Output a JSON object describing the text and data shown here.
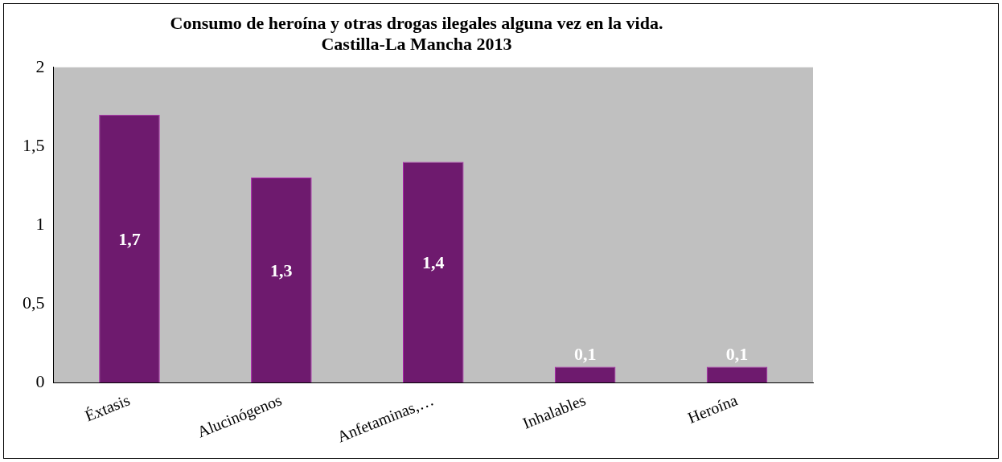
{
  "chart_data": {
    "type": "bar",
    "title": "Consumo de heroína y otras drogas ilegales alguna vez en la vida.\nCastilla-La Mancha 2013",
    "categories": [
      "Éxtasis",
      "Alucinógenos",
      "Anfetaminas,…",
      "Inhalables",
      "Heroína"
    ],
    "values": [
      1.7,
      1.3,
      1.4,
      0.1,
      0.1
    ],
    "value_labels": [
      "1,7",
      "1,3",
      "1,4",
      "0,1",
      "0,1"
    ],
    "color": "#6e1a6e",
    "ylim": [
      0,
      2
    ],
    "yticks": [
      0,
      {
        "value": 0.5,
        "label": "0,5"
      },
      1,
      {
        "value": 1.5,
        "label": "1,5"
      },
      2
    ],
    "grid": false,
    "legend": false
  }
}
